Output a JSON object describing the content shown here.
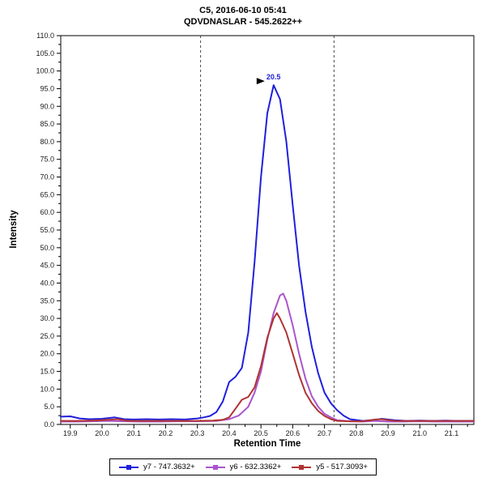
{
  "chart_data": {
    "type": "line",
    "title": "C5, 2016-06-10 05:41 - QDVDNASLAR - 545.2622++",
    "title_line1": "C5, 2016-06-10 05:41",
    "title_line2": "QDVDNASLAR - 545.2622++",
    "xlabel": "Retention Time",
    "ylabel": "Intensity",
    "xlim": [
      19.87,
      21.17
    ],
    "ylim": [
      0,
      110
    ],
    "x_ticks": [
      "19.9",
      "20.0",
      "20.1",
      "20.2",
      "20.3",
      "20.4",
      "20.5",
      "20.6",
      "20.7",
      "20.8",
      "20.9",
      "21.0",
      "21.1"
    ],
    "y_ticks": [
      "0.0",
      "5.0",
      "10.0",
      "15.0",
      "20.0",
      "25.0",
      "30.0",
      "35.0",
      "40.0",
      "45.0",
      "50.0",
      "55.0",
      "60.0",
      "65.0",
      "70.0",
      "75.0",
      "80.0",
      "85.0",
      "90.0",
      "95.0",
      "100.0",
      "105.0",
      "110.0"
    ],
    "grid": false,
    "legend_position": "bottom-center",
    "peak_boundaries": [
      20.31,
      20.73
    ],
    "annotation": {
      "text": "20.5",
      "x": 20.54,
      "y": 96
    },
    "series": [
      {
        "name": "y7 - 747.3632+",
        "color": "#2020DD",
        "x": [
          19.87,
          19.9,
          19.93,
          19.96,
          20.0,
          20.04,
          20.07,
          20.1,
          20.14,
          20.18,
          20.22,
          20.26,
          20.3,
          20.32,
          20.34,
          20.36,
          20.38,
          20.4,
          20.42,
          20.44,
          20.46,
          20.48,
          20.5,
          20.52,
          20.54,
          20.56,
          20.58,
          20.6,
          20.62,
          20.64,
          20.66,
          20.68,
          20.7,
          20.72,
          20.74,
          20.76,
          20.78,
          20.82,
          20.86,
          20.88,
          20.92,
          20.96,
          21.0,
          21.04,
          21.08,
          21.12,
          21.17
        ],
        "y": [
          2.2,
          2.3,
          1.7,
          1.5,
          1.6,
          2.0,
          1.5,
          1.4,
          1.5,
          1.4,
          1.5,
          1.4,
          1.7,
          2.0,
          2.4,
          3.5,
          6.5,
          12.0,
          13.5,
          16.0,
          26.0,
          46.0,
          70.0,
          88.0,
          96.0,
          92.0,
          80.0,
          62.0,
          45.0,
          32.0,
          22.0,
          14.5,
          9.0,
          6.0,
          4.0,
          2.5,
          1.5,
          1.0,
          1.3,
          1.6,
          1.2,
          1.0,
          1.1,
          1.0,
          1.1,
          1.0,
          1.0
        ]
      },
      {
        "name": "y6 - 632.3362+",
        "color": "#AA55CC",
        "x": [
          19.87,
          19.92,
          19.97,
          20.02,
          20.07,
          20.12,
          20.18,
          20.24,
          20.3,
          20.36,
          20.4,
          20.43,
          20.46,
          20.48,
          20.5,
          20.52,
          20.54,
          20.56,
          20.57,
          20.58,
          20.6,
          20.62,
          20.64,
          20.66,
          20.68,
          20.7,
          20.72,
          20.74,
          20.78,
          20.82,
          20.86,
          20.9,
          20.95,
          21.0,
          21.05,
          21.1,
          21.17
        ],
        "y": [
          0.8,
          0.8,
          0.9,
          1.0,
          0.9,
          0.8,
          0.8,
          0.9,
          0.9,
          1.0,
          1.5,
          2.5,
          5.0,
          9.0,
          15.0,
          24.0,
          31.5,
          36.5,
          37.0,
          35.0,
          28.0,
          20.0,
          13.0,
          8.0,
          5.0,
          3.0,
          2.0,
          1.2,
          0.9,
          0.8,
          1.0,
          0.8,
          0.8,
          0.9,
          0.8,
          0.8,
          0.8
        ]
      },
      {
        "name": "y5 - 517.3093+",
        "color": "#B03333",
        "x": [
          19.87,
          19.92,
          19.97,
          20.02,
          20.05,
          20.08,
          20.12,
          20.18,
          20.24,
          20.3,
          20.35,
          20.38,
          20.4,
          20.42,
          20.44,
          20.46,
          20.48,
          20.5,
          20.52,
          20.54,
          20.55,
          20.56,
          20.58,
          20.6,
          20.62,
          20.64,
          20.66,
          20.68,
          20.7,
          20.72,
          20.74,
          20.78,
          20.82,
          20.86,
          20.88,
          20.92,
          20.96,
          21.0,
          21.05,
          21.1,
          21.17
        ],
        "y": [
          1.0,
          1.0,
          1.1,
          1.3,
          1.5,
          1.0,
          1.0,
          1.0,
          1.0,
          1.0,
          1.1,
          1.3,
          2.0,
          4.5,
          7.0,
          7.8,
          10.5,
          16.5,
          24.5,
          30.0,
          31.5,
          30.0,
          26.0,
          20.0,
          14.0,
          9.0,
          6.0,
          3.8,
          2.4,
          1.5,
          1.0,
          0.9,
          0.9,
          1.4,
          1.5,
          1.0,
          1.0,
          1.0,
          1.0,
          1.0,
          1.0
        ]
      }
    ]
  }
}
